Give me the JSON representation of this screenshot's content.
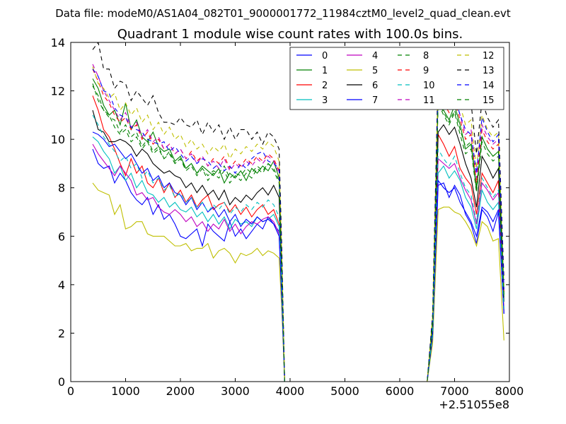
{
  "header": {
    "data_file": "Data file: modeM0/AS1A04_082T01_9000001772_11984cztM0_level2_quad_clean.evt"
  },
  "chart_data": {
    "type": "line",
    "title": "Quadrant 1 module wise count rates with 100.0s bins.",
    "xlabel": "",
    "ylabel": "",
    "x_offset_label": "+2.51055e8",
    "xlim": [
      0,
      8000
    ],
    "ylim": [
      0,
      14
    ],
    "x_ticks": [
      0,
      1000,
      2000,
      3000,
      4000,
      5000,
      6000,
      7000,
      8000
    ],
    "y_ticks": [
      0,
      2,
      4,
      6,
      8,
      10,
      12,
      14
    ],
    "grid": false,
    "legend": {
      "placement": "top-right",
      "columns": 4
    },
    "x": [
      400,
      500,
      600,
      700,
      800,
      900,
      1000,
      1100,
      1200,
      1300,
      1400,
      1500,
      1600,
      1700,
      1800,
      1900,
      2000,
      2100,
      2200,
      2300,
      2400,
      2500,
      2600,
      2700,
      2800,
      2900,
      3000,
      3100,
      3200,
      3300,
      3400,
      3500,
      3600,
      3700,
      3800,
      3850,
      3900,
      4000,
      6500,
      6600,
      6700,
      6800,
      6900,
      7000,
      7100,
      7200,
      7300,
      7400,
      7500,
      7600,
      7700,
      7800,
      7900
    ],
    "series": [
      {
        "name": "0",
        "color": "#0000ff",
        "dash": "solid",
        "values": [
          9.6,
          9.0,
          8.8,
          8.9,
          8.2,
          8.6,
          8.3,
          7.8,
          7.5,
          7.3,
          7.6,
          6.9,
          7.3,
          6.7,
          6.9,
          6.5,
          6.0,
          5.9,
          6.1,
          6.3,
          5.6,
          6.5,
          6.2,
          6.0,
          5.8,
          6.6,
          6.0,
          6.3,
          5.9,
          6.2,
          6.5,
          6.3,
          6.8,
          6.5,
          6.2,
          3.5,
          0,
          0,
          0,
          1.8,
          8.1,
          8.2,
          7.6,
          8.1,
          7.7,
          6.9,
          6.5,
          5.7,
          7.1,
          6.8,
          6.2,
          7.0,
          2.8
        ]
      },
      {
        "name": "1",
        "color": "#008000",
        "dash": "solid",
        "values": [
          12.5,
          12.1,
          11.4,
          11.0,
          11.2,
          10.6,
          11.5,
          10.4,
          10.8,
          10.1,
          9.9,
          10.3,
          9.7,
          9.5,
          9.6,
          9.1,
          9.3,
          8.8,
          9.0,
          8.6,
          8.9,
          8.7,
          8.5,
          8.8,
          8.2,
          8.6,
          8.4,
          8.7,
          8.3,
          8.8,
          8.6,
          8.9,
          8.7,
          9.1,
          8.4,
          4.7,
          0,
          0,
          0,
          2.5,
          11.8,
          11.2,
          10.8,
          11.4,
          10.6,
          9.6,
          9.8,
          7.9,
          10.1,
          9.6,
          9.3,
          9.5,
          3.6
        ]
      },
      {
        "name": "2",
        "color": "#ff0000",
        "dash": "solid",
        "values": [
          11.8,
          11.2,
          10.4,
          10.1,
          9.6,
          9.0,
          8.5,
          9.2,
          8.6,
          8.9,
          8.2,
          8.0,
          8.4,
          7.8,
          8.2,
          7.6,
          7.9,
          7.4,
          7.7,
          7.2,
          7.5,
          7.7,
          7.1,
          7.3,
          7.4,
          7.0,
          7.3,
          6.9,
          7.2,
          6.8,
          7.1,
          7.3,
          6.9,
          7.1,
          6.5,
          3.6,
          0,
          0,
          0,
          2.0,
          10.2,
          9.8,
          9.3,
          9.7,
          8.8,
          8.4,
          8.1,
          6.9,
          8.6,
          8.2,
          7.8,
          8.3,
          3.0
        ]
      },
      {
        "name": "3",
        "color": "#00bfbf",
        "dash": "solid",
        "values": [
          10.1,
          9.9,
          9.5,
          9.2,
          8.6,
          8.9,
          8.3,
          8.6,
          8.0,
          8.3,
          7.8,
          7.7,
          7.4,
          7.6,
          7.2,
          7.4,
          7.1,
          7.0,
          7.2,
          6.8,
          7.0,
          6.6,
          6.9,
          6.5,
          6.8,
          6.3,
          6.7,
          6.5,
          6.6,
          6.4,
          6.8,
          6.6,
          6.7,
          6.9,
          6.4,
          3.6,
          0,
          0,
          0,
          1.9,
          8.6,
          8.9,
          8.4,
          8.7,
          8.3,
          7.6,
          7.2,
          6.3,
          7.9,
          7.4,
          7.1,
          7.4,
          2.9
        ]
      },
      {
        "name": "4",
        "color": "#bf00bf",
        "dash": "solid",
        "values": [
          9.8,
          9.4,
          9.1,
          8.8,
          8.5,
          8.9,
          8.6,
          8.3,
          7.7,
          7.8,
          7.5,
          7.6,
          7.2,
          7.0,
          6.9,
          7.1,
          6.9,
          6.6,
          6.8,
          6.4,
          6.6,
          6.2,
          6.5,
          6.3,
          6.7,
          6.2,
          6.5,
          6.1,
          6.4,
          6.6,
          6.5,
          6.7,
          6.8,
          6.6,
          6.1,
          3.4,
          0,
          0,
          0,
          1.8,
          9.2,
          9.0,
          8.8,
          9.0,
          8.4,
          7.9,
          7.5,
          6.5,
          8.2,
          7.9,
          7.5,
          7.8,
          2.9
        ]
      },
      {
        "name": "5",
        "color": "#bfbf00",
        "dash": "solid",
        "values": [
          8.2,
          7.9,
          7.8,
          7.7,
          6.9,
          7.3,
          6.3,
          6.4,
          6.6,
          6.6,
          6.1,
          6.0,
          6.0,
          6.0,
          5.8,
          5.6,
          5.6,
          5.7,
          5.4,
          5.5,
          5.5,
          5.7,
          5.1,
          5.4,
          5.5,
          5.3,
          4.9,
          5.3,
          5.2,
          5.3,
          5.5,
          5.2,
          5.4,
          5.3,
          5.1,
          2.9,
          0,
          0,
          0,
          1.6,
          7.1,
          7.2,
          7.2,
          7.0,
          6.9,
          6.6,
          6.2,
          5.6,
          6.6,
          6.4,
          5.8,
          5.9,
          1.7
        ]
      },
      {
        "name": "6",
        "color": "#000000",
        "dash": "solid",
        "values": [
          11.2,
          10.4,
          10.3,
          9.9,
          9.9,
          10.0,
          9.9,
          9.7,
          9.3,
          9.6,
          9.4,
          9.0,
          8.8,
          8.6,
          8.7,
          8.5,
          8.4,
          8.0,
          8.2,
          7.8,
          8.1,
          7.7,
          7.9,
          7.5,
          7.9,
          7.3,
          7.6,
          7.4,
          7.7,
          7.5,
          7.8,
          8.0,
          7.7,
          8.1,
          7.6,
          4.2,
          0,
          0,
          0,
          2.3,
          10.3,
          10.6,
          10.2,
          10.5,
          9.8,
          9.0,
          8.4,
          7.2,
          9.3,
          8.9,
          8.4,
          8.8,
          3.3
        ]
      },
      {
        "name": "7",
        "color": "#0000ff",
        "dash": "solid",
        "values": [
          10.3,
          10.2,
          10.0,
          9.7,
          9.8,
          9.5,
          9.2,
          9.4,
          9.0,
          8.6,
          8.8,
          8.3,
          8.5,
          8.0,
          8.2,
          7.8,
          7.7,
          7.3,
          7.6,
          7.1,
          7.4,
          7.0,
          7.2,
          6.8,
          7.1,
          6.6,
          6.9,
          6.4,
          6.7,
          6.5,
          6.8,
          6.6,
          6.7,
          6.5,
          6.0,
          3.3,
          0,
          0,
          0,
          1.9,
          8.3,
          8.0,
          7.8,
          8.0,
          7.4,
          7.0,
          6.6,
          6.0,
          7.2,
          7.0,
          6.6,
          7.1,
          2.8
        ]
      },
      {
        "name": "8",
        "color": "#008000",
        "dash": "dashed",
        "values": [
          12.2,
          11.8,
          11.2,
          10.9,
          10.8,
          10.3,
          10.6,
          10.1,
          10.3,
          9.7,
          10.0,
          9.5,
          9.7,
          9.2,
          9.5,
          9.0,
          9.2,
          8.7,
          8.9,
          8.5,
          8.8,
          8.3,
          8.6,
          8.4,
          8.7,
          8.2,
          8.5,
          8.3,
          8.6,
          8.4,
          8.8,
          8.6,
          9.0,
          8.7,
          8.2,
          4.6,
          0,
          0,
          0,
          2.4,
          11.5,
          11.0,
          10.6,
          11.1,
          10.2,
          9.4,
          9.6,
          7.8,
          9.9,
          9.4,
          9.1,
          9.3,
          3.5
        ]
      },
      {
        "name": "9",
        "color": "#ff0000",
        "dash": "dashed",
        "values": [
          12.9,
          12.4,
          11.8,
          11.5,
          11.0,
          10.7,
          10.9,
          10.4,
          10.6,
          10.0,
          10.3,
          9.8,
          10.0,
          9.6,
          9.8,
          9.4,
          9.6,
          9.2,
          9.5,
          9.1,
          9.3,
          8.9,
          9.2,
          9.0,
          9.3,
          8.8,
          9.1,
          8.9,
          9.2,
          9.0,
          9.3,
          9.1,
          9.4,
          9.2,
          8.7,
          4.9,
          0,
          0,
          0,
          2.6,
          12.0,
          11.5,
          11.1,
          11.6,
          10.8,
          10.0,
          10.2,
          8.2,
          10.4,
          9.9,
          9.6,
          9.8,
          3.7
        ]
      },
      {
        "name": "10",
        "color": "#00bfbf",
        "dash": "dashed",
        "values": [
          11.0,
          10.6,
          10.1,
          9.8,
          9.5,
          9.1,
          9.3,
          8.8,
          9.0,
          8.4,
          8.7,
          8.2,
          8.4,
          7.9,
          8.1,
          7.6,
          7.8,
          7.4,
          7.6,
          7.2,
          7.4,
          7.0,
          7.3,
          7.1,
          7.4,
          6.9,
          7.2,
          7.0,
          7.3,
          7.1,
          7.4,
          7.2,
          7.5,
          7.3,
          6.8,
          3.8,
          0,
          0,
          0,
          2.0,
          9.6,
          9.2,
          8.9,
          9.3,
          8.6,
          8.0,
          7.7,
          6.6,
          8.4,
          8.0,
          7.6,
          7.9,
          3.0
        ]
      },
      {
        "name": "11",
        "color": "#bf00bf",
        "dash": "dashed",
        "values": [
          13.1,
          12.6,
          12.0,
          11.6,
          11.2,
          10.8,
          11.1,
          10.5,
          10.7,
          10.1,
          10.4,
          9.9,
          10.1,
          9.6,
          9.8,
          9.4,
          9.6,
          9.2,
          9.4,
          9.0,
          9.3,
          8.9,
          9.1,
          8.8,
          9.2,
          8.7,
          9.0,
          8.8,
          9.1,
          8.9,
          9.2,
          9.0,
          9.3,
          9.1,
          8.6,
          4.8,
          0,
          0,
          0,
          2.6,
          12.2,
          11.7,
          11.3,
          11.8,
          11.0,
          10.2,
          10.4,
          8.4,
          10.6,
          10.1,
          9.8,
          10.0,
          3.8
        ]
      },
      {
        "name": "12",
        "color": "#bfbf00",
        "dash": "dashed",
        "values": [
          13.0,
          12.3,
          12.1,
          11.7,
          11.9,
          11.2,
          11.5,
          11.0,
          11.3,
          10.7,
          11.0,
          10.4,
          10.7,
          10.2,
          10.5,
          10.0,
          10.2,
          9.7,
          10.0,
          9.6,
          9.8,
          9.4,
          9.7,
          9.5,
          9.8,
          9.2,
          9.6,
          9.4,
          9.7,
          9.5,
          9.8,
          9.6,
          9.9,
          9.7,
          9.1,
          5.1,
          0,
          0,
          0,
          2.7,
          12.6,
          12.1,
          11.7,
          12.2,
          11.4,
          10.6,
          10.8,
          8.8,
          11.0,
          10.4,
          10.1,
          10.3,
          3.9
        ]
      },
      {
        "name": "13",
        "color": "#000000",
        "dash": "dashed",
        "values": [
          13.7,
          14.0,
          12.9,
          12.9,
          12.1,
          12.4,
          12.3,
          11.6,
          12.0,
          11.7,
          11.4,
          11.8,
          11.1,
          10.7,
          10.7,
          10.6,
          10.9,
          10.6,
          10.5,
          10.8,
          10.2,
          10.7,
          10.3,
          10.6,
          10.0,
          10.5,
          10.0,
          10.4,
          10.4,
          10.0,
          10.3,
          9.8,
          10.3,
          10.1,
          9.6,
          5.4,
          0,
          0,
          0,
          2.8,
          12.9,
          12.5,
          12.4,
          12.3,
          12.0,
          11.8,
          11.5,
          9.4,
          11.6,
          10.9,
          10.5,
          10.8,
          4.2
        ]
      },
      {
        "name": "14",
        "color": "#0000ff",
        "dash": "dashed",
        "values": [
          12.9,
          12.6,
          12.0,
          11.9,
          11.3,
          11.0,
          10.9,
          10.5,
          10.4,
          10.3,
          10.0,
          9.9,
          9.8,
          9.9,
          9.5,
          9.7,
          9.4,
          9.1,
          9.3,
          9.0,
          9.2,
          9.1,
          8.8,
          9.0,
          8.7,
          8.9,
          8.6,
          9.0,
          8.8,
          9.2,
          9.4,
          9.5,
          9.1,
          9.0,
          8.8,
          4.9,
          0,
          0,
          0,
          2.6,
          12.3,
          11.9,
          11.5,
          11.8,
          11.0,
          10.4,
          10.2,
          8.6,
          10.9,
          10.3,
          9.9,
          10.2,
          3.8
        ]
      },
      {
        "name": "15",
        "color": "#008000",
        "dash": "dashed",
        "values": [
          12.3,
          11.6,
          11.2,
          11.0,
          10.5,
          10.2,
          10.4,
          9.9,
          10.1,
          9.6,
          9.9,
          9.4,
          9.6,
          9.2,
          9.4,
          9.0,
          9.2,
          8.8,
          9.0,
          8.6,
          8.8,
          8.5,
          8.7,
          8.6,
          8.9,
          8.4,
          8.6,
          8.5,
          8.8,
          8.6,
          8.9,
          8.7,
          9.0,
          8.8,
          8.3,
          4.6,
          0,
          0,
          0,
          2.5,
          11.6,
          11.1,
          10.7,
          11.2,
          10.4,
          9.7,
          9.9,
          8.0,
          10.1,
          9.6,
          9.3,
          9.5,
          3.6
        ]
      }
    ]
  }
}
